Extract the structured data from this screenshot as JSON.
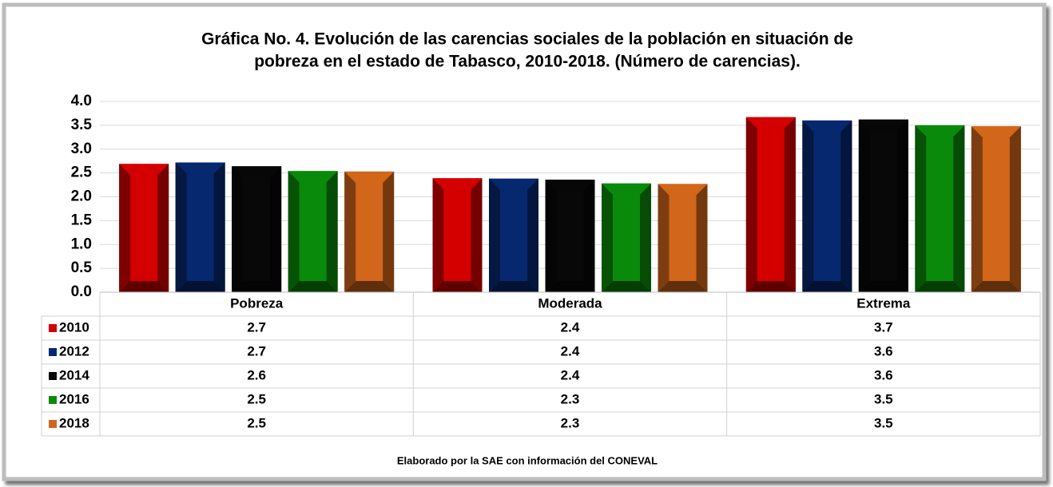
{
  "chart_data": {
    "type": "bar",
    "title": "Gráfica No. 4. Evolución de las carencias sociales de la población en situación de",
    "subtitle": "pobreza en el estado de Tabasco, 2010-2018. (Número de carencias).",
    "categories": [
      "Pobreza",
      "Moderada",
      "Extrema"
    ],
    "series": [
      {
        "name": "2010",
        "color": "#d40000",
        "values": [
          2.69,
          2.39,
          3.67
        ],
        "value_labels": [
          "2.7",
          "2.4",
          "3.7"
        ]
      },
      {
        "name": "2012",
        "color": "#06286e",
        "values": [
          2.72,
          2.38,
          3.6
        ],
        "value_labels": [
          "2.7",
          "2.4",
          "3.6"
        ]
      },
      {
        "name": "2014",
        "color": "#080808",
        "values": [
          2.64,
          2.36,
          3.62
        ],
        "value_labels": [
          "2.6",
          "2.4",
          "3.6"
        ]
      },
      {
        "name": "2016",
        "color": "#0a8a0a",
        "values": [
          2.54,
          2.28,
          3.5
        ],
        "value_labels": [
          "2.5",
          "2.3",
          "3.5"
        ]
      },
      {
        "name": "2018",
        "color": "#d2661a",
        "values": [
          2.53,
          2.27,
          3.48
        ],
        "value_labels": [
          "2.5",
          "2.3",
          "3.5"
        ]
      }
    ],
    "ylim": [
      0,
      4
    ],
    "yticks": [
      {
        "value": 0,
        "label": "0.0"
      },
      {
        "value": 0.5,
        "label": "0.5"
      },
      {
        "value": 1,
        "label": "1.0"
      },
      {
        "value": 1.5,
        "label": "1.5"
      },
      {
        "value": 2,
        "label": "2.0"
      },
      {
        "value": 2.5,
        "label": "2.5"
      },
      {
        "value": 3,
        "label": "3.0"
      },
      {
        "value": 3.5,
        "label": "3.5"
      },
      {
        "value": 4,
        "label": "4.0"
      }
    ],
    "grid": true,
    "note": "Elaborado por la SAE con información del CONEVAL"
  }
}
